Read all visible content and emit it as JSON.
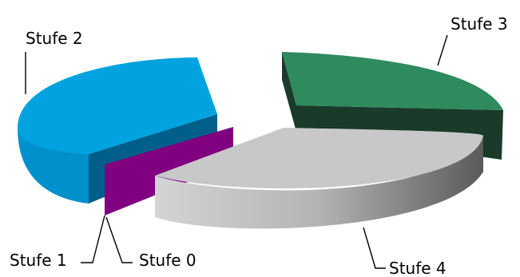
{
  "chart_data": {
    "type": "pie",
    "style": "3d-exploded",
    "slices": [
      {
        "label": "Stufe 0",
        "value": 2,
        "color": "#800080"
      },
      {
        "label": "Stufe 1",
        "value": 0,
        "color": "#1f4e79"
      },
      {
        "label": "Stufe 2",
        "value": 28,
        "color": "#00a3e0"
      },
      {
        "label": "Stufe 3",
        "value": 29,
        "color": "#2e8b5e"
      },
      {
        "label": "Stufe 4",
        "value": 41,
        "color": "#c8c8c8"
      }
    ],
    "legend": "none"
  }
}
